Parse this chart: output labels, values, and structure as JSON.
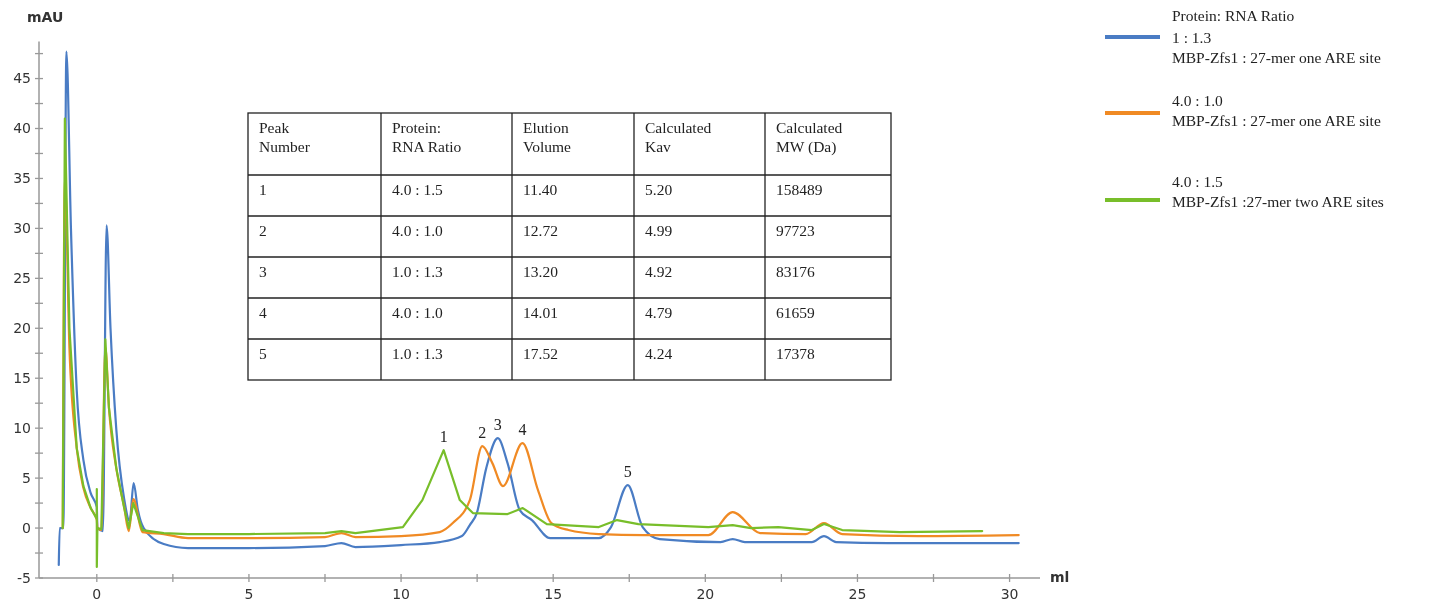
{
  "chart_data": {
    "type": "line",
    "xlabel": "ml",
    "ylabel": "mAU",
    "legend_title": "Protein: RNA Ratio",
    "legend": "right",
    "grid": false,
    "marker": "none",
    "line_style": "solid",
    "xlim": [
      -1.9,
      31
    ],
    "xticks": [
      0,
      {
        "value": 2.5,
        "label": null
      },
      5,
      {
        "value": 7.5,
        "label": null
      },
      10,
      {
        "value": 12.5,
        "label": null
      },
      15,
      {
        "value": 17.5,
        "label": null
      },
      20,
      {
        "value": 22.5,
        "label": null
      },
      25,
      {
        "value": 27.5,
        "label": null
      },
      30
    ],
    "ylim": [
      -5,
      48.7
    ],
    "yticks": [
      -5,
      {
        "value": -2.5,
        "label": null
      },
      0,
      {
        "value": 2.5,
        "label": null
      },
      5,
      {
        "value": 7.5,
        "label": null
      },
      10,
      {
        "value": 12.5,
        "label": null
      },
      15,
      {
        "value": 17.5,
        "label": null
      },
      20,
      {
        "value": 22.5,
        "label": null
      },
      25,
      {
        "value": 27.5,
        "label": null
      },
      30,
      {
        "value": 32.5,
        "label": null
      },
      35,
      {
        "value": 37.5,
        "label": null
      },
      40,
      {
        "value": 42.5,
        "label": null
      },
      45,
      {
        "value": 47.5,
        "label": null
      }
    ],
    "series": [
      {
        "name": "1 : 1.3\nMBP-Zfs1 : 27-mer one ARE site",
        "color": "#4a7cc4",
        "x": [
          -1.25,
          -1.22,
          -1.1,
          -1.0,
          -0.85,
          -0.66,
          -0.44,
          -0.2,
          0,
          0.02,
          0.2,
          0.32,
          0.45,
          0.64,
          0.9,
          1.08,
          1.21,
          1.35,
          1.54,
          2.2,
          3,
          5,
          7.5,
          8.04,
          8.5,
          10,
          11.27,
          12.0,
          12.26,
          12.49,
          12.8,
          13.18,
          13.5,
          13.9,
          14.3,
          14.9,
          16.5,
          16.9,
          17.45,
          17.94,
          18.5,
          20.5,
          20.9,
          21.3,
          23.5,
          23.9,
          24.3,
          26,
          28,
          30.3
        ],
        "values": [
          -3.7,
          0,
          0,
          47.7,
          30,
          13.8,
          6.8,
          3.5,
          2.1,
          0,
          -0.3,
          30.3,
          20,
          9.9,
          2.9,
          0.7,
          4.5,
          1.8,
          0,
          -1.6,
          -2.0,
          -2.0,
          -1.8,
          -1.5,
          -1.9,
          -1.7,
          -1.4,
          -0.8,
          0.3,
          1.5,
          6,
          9.0,
          6.5,
          1.8,
          0.8,
          -1.0,
          -1.0,
          0.1,
          4.3,
          0.1,
          -1.1,
          -1.4,
          -1.1,
          -1.4,
          -1.4,
          -0.8,
          -1.4,
          -1.5,
          -1.5,
          -1.5
        ]
      },
      {
        "name": "4.0 : 1.0\nMBP-Zfs1 : 27-mer one ARE site",
        "color": "#f08a24",
        "x": [
          -1.12,
          -1.05,
          -0.9,
          -0.66,
          -0.44,
          -0.2,
          0,
          0.02,
          0.15,
          0.28,
          0.4,
          0.64,
          0.9,
          1.05,
          1.2,
          1.5,
          2.2,
          3,
          5,
          7.5,
          8.04,
          8.5,
          10,
          11.27,
          11.7,
          12.26,
          12.67,
          13.0,
          13.35,
          13.99,
          14.5,
          14.94,
          15.5,
          16.5,
          18,
          20.1,
          20.9,
          21.8,
          23.3,
          23.9,
          24.5,
          27,
          30.3
        ],
        "values": [
          0,
          35,
          18,
          8,
          4,
          2,
          0.8,
          0,
          -0.2,
          18.1,
          12,
          6,
          2.1,
          -0.3,
          2.9,
          -0.4,
          -0.6,
          -1.0,
          -1.0,
          -0.9,
          -0.5,
          -0.9,
          -0.8,
          -0.4,
          0.5,
          2.8,
          8.2,
          6.5,
          4.2,
          8.5,
          3.8,
          0.5,
          -0.2,
          -0.6,
          -0.7,
          -0.7,
          1.6,
          -0.5,
          -0.6,
          0.5,
          -0.6,
          -0.8,
          -0.7
        ]
      },
      {
        "name": "4.0 : 1.5\nMBP-Zfs1 :27-mer two ARE sites",
        "color": "#78be2a",
        "x": [
          -1.12,
          -1.05,
          -0.9,
          -0.66,
          -0.44,
          -0.2,
          0,
          0,
          0,
          0.02,
          0.15,
          0.28,
          0.4,
          0.64,
          0.9,
          1.05,
          1.2,
          1.5,
          2.2,
          3,
          5,
          7.5,
          8.04,
          8.5,
          10.06,
          10.7,
          11.4,
          11.93,
          12.36,
          13.5,
          14.0,
          14.79,
          16.5,
          17.1,
          17.8,
          20.1,
          20.9,
          21.5,
          22.4,
          23.5,
          23.9,
          24.5,
          26.4,
          29.1
        ],
        "values": [
          0,
          41,
          20,
          8,
          4.2,
          2,
          0.9,
          3.9,
          -3.9,
          0,
          -0.1,
          18.9,
          12,
          6,
          2,
          0,
          2.5,
          -0.2,
          -0.5,
          -0.6,
          -0.6,
          -0.5,
          -0.3,
          -0.5,
          0.1,
          2.8,
          7.8,
          2.8,
          1.5,
          1.4,
          2.0,
          0.4,
          0.1,
          0.8,
          0.4,
          0.1,
          0.3,
          0,
          0.1,
          -0.2,
          0.4,
          -0.2,
          -0.4,
          -0.3
        ]
      }
    ],
    "annotations": [
      {
        "text": "1",
        "x": 11.4,
        "y": 7.8
      },
      {
        "text": "2",
        "x": 12.67,
        "y": 8.2
      },
      {
        "text": "3",
        "x": 13.18,
        "y": 9.0
      },
      {
        "text": "4",
        "x": 13.99,
        "y": 8.5
      },
      {
        "text": "5",
        "x": 17.45,
        "y": 4.3
      },
      "Peak\nNumber",
      "Protein:\nRNA Ratio",
      "Elution\nVolume",
      "Calculated\nKav",
      "Calculated\nMW (Da)",
      "1",
      "4.0 : 1.5",
      "11.40",
      "5.20",
      "158489",
      "2",
      "4.0 : 1.0",
      "12.72",
      "4.99",
      "97723",
      "3",
      "1.0 : 1.3",
      "13.20",
      "4.92",
      "83176",
      "4",
      "4.0 : 1.0",
      "14.01",
      "4.79",
      "61659",
      "5",
      "1.0 : 1.3",
      "17.52",
      "4.24",
      "17378"
    ]
  }
}
